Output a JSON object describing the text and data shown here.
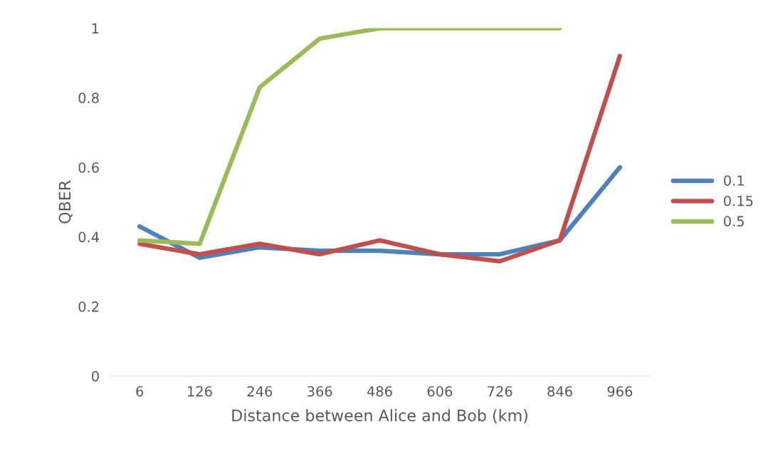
{
  "chart_data": {
    "type": "line",
    "xlabel": "Distance between Alice and Bob (km)",
    "ylabel": "QBER",
    "categories": [
      "6",
      "126",
      "246",
      "366",
      "486",
      "606",
      "726",
      "846",
      "966"
    ],
    "series": [
      {
        "name": "0.1",
        "color": "#4f81bd",
        "values": [
          0.43,
          0.34,
          0.37,
          0.36,
          0.36,
          0.35,
          0.35,
          0.39,
          0.6
        ]
      },
      {
        "name": "0.15",
        "color": "#c0504d",
        "values": [
          0.38,
          0.35,
          0.38,
          0.35,
          0.39,
          0.35,
          0.33,
          0.39,
          0.92
        ]
      },
      {
        "name": "0.5",
        "color": "#9bbb59",
        "values": [
          0.39,
          0.38,
          0.83,
          0.97,
          1,
          1,
          1,
          1,
          null
        ]
      }
    ],
    "ylim": [
      0,
      1
    ],
    "yticks": [
      0,
      0.2,
      0.4,
      0.6,
      0.8,
      1
    ],
    "grid": false,
    "legend": "right",
    "marker": "none",
    "line_style": "solid"
  }
}
